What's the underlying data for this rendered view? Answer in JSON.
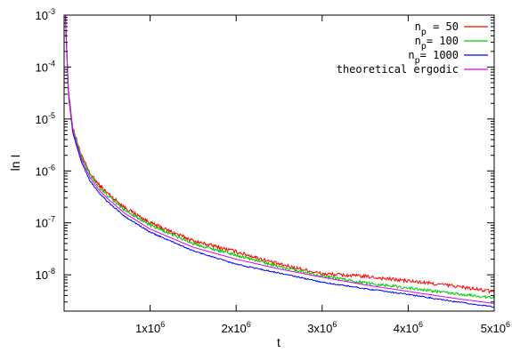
{
  "chart_data": {
    "type": "line",
    "title": "",
    "xlabel": "t",
    "ylabel": "ln I",
    "xlim": [
      0,
      5000000
    ],
    "ylim": [
      2e-09,
      0.001
    ],
    "yscale": "log",
    "grid": false,
    "legend_position": "top-right",
    "x_ticks": [
      {
        "value": 1000000,
        "base": "1x10",
        "exp": "6"
      },
      {
        "value": 2000000,
        "base": "2x10",
        "exp": "6"
      },
      {
        "value": 3000000,
        "base": "3x10",
        "exp": "6"
      },
      {
        "value": 4000000,
        "base": "4x10",
        "exp": "6"
      },
      {
        "value": 5000000,
        "base": "5x10",
        "exp": "6"
      }
    ],
    "y_ticks": [
      {
        "value": 1e-08,
        "base": "10",
        "exp": "-8"
      },
      {
        "value": 1e-07,
        "base": "10",
        "exp": "-7"
      },
      {
        "value": 1e-06,
        "base": "10",
        "exp": "-6"
      },
      {
        "value": 1e-05,
        "base": "10",
        "exp": "-5"
      },
      {
        "value": 0.0001,
        "base": "10",
        "exp": "-4"
      },
      {
        "value": 0.001,
        "base": "10",
        "exp": "-3"
      }
    ],
    "series": [
      {
        "name": "n_p = 50",
        "legend": {
          "main": "n",
          "sub": "p",
          "rest": " = 50"
        },
        "color": "#ff0000",
        "noise": 0.035,
        "x": [
          20000,
          50000,
          100000,
          200000,
          300000,
          400000,
          500000,
          700000,
          1000000,
          1500000,
          2000000,
          2500000,
          3000000,
          3500000,
          4000000,
          4500000,
          5000000
        ],
        "y": [
          0.0006,
          3.5e-05,
          7e-06,
          2e-06,
          9e-07,
          5.5e-07,
          3.8e-07,
          2e-07,
          1e-07,
          4.5e-08,
          2.8e-08,
          1.6e-08,
          1.05e-08,
          9.3e-09,
          7.6e-09,
          6.2e-09,
          4.7e-09
        ]
      },
      {
        "name": "n_p = 100",
        "legend": {
          "main": "n",
          "sub": "p",
          "rest": "= 100"
        },
        "color": "#00c800",
        "noise": 0.028,
        "x": [
          20000,
          50000,
          100000,
          200000,
          300000,
          400000,
          500000,
          700000,
          1000000,
          1500000,
          2000000,
          2500000,
          3000000,
          3500000,
          4000000,
          4500000,
          5000000
        ],
        "y": [
          0.0006,
          3.4e-05,
          6.8e-06,
          1.9e-06,
          8.5e-07,
          5e-07,
          3.4e-07,
          1.8e-07,
          9e-08,
          4e-08,
          2.4e-08,
          1.45e-08,
          9.5e-09,
          7e-09,
          5.6e-09,
          4.4e-09,
          3.6e-09
        ]
      },
      {
        "name": "n_p = 1000",
        "legend": {
          "main": "n",
          "sub": "p",
          "rest": "= 1000"
        },
        "color": "#0000ff",
        "noise": 0.012,
        "x": [
          20000,
          50000,
          100000,
          200000,
          300000,
          400000,
          500000,
          700000,
          1000000,
          1500000,
          2000000,
          2500000,
          3000000,
          3500000,
          4000000,
          4500000,
          5000000
        ],
        "y": [
          0.0006,
          3e-05,
          5.5e-06,
          1.5e-06,
          6.5e-07,
          3.9e-07,
          2.6e-07,
          1.35e-07,
          6.6e-08,
          2.9e-08,
          1.6e-08,
          1.08e-08,
          7.2e-09,
          5.4e-09,
          4.2e-09,
          3.1e-09,
          2.4e-09
        ]
      },
      {
        "name": "theoretical ergodic",
        "legend": {
          "main": "theoretical ergodic",
          "sub": "",
          "rest": ""
        },
        "color": "#e000e0",
        "noise": 0,
        "x": [
          20000,
          50000,
          100000,
          200000,
          300000,
          400000,
          500000,
          700000,
          1000000,
          1500000,
          2000000,
          2500000,
          3000000,
          3500000,
          4000000,
          4500000,
          5000000
        ],
        "y": [
          0.0006,
          3.2e-05,
          6.2e-06,
          1.7e-06,
          7.5e-07,
          4.4e-07,
          3e-07,
          1.55e-07,
          7.6e-08,
          3.4e-08,
          2e-08,
          1.3e-08,
          9e-09,
          6.4e-09,
          4.8e-09,
          3.6e-09,
          2.8e-09
        ]
      }
    ]
  }
}
